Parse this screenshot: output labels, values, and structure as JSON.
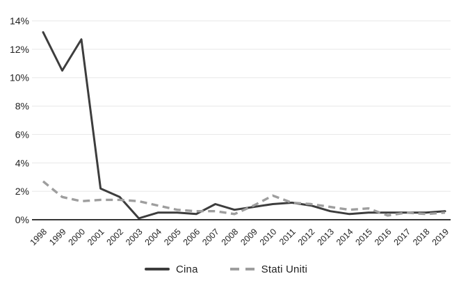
{
  "figure": {
    "background": "#ffffff"
  },
  "chart_data": {
    "type": "line",
    "title": "",
    "xlabel": "",
    "ylabel": "",
    "x": [
      "1998",
      "1999",
      "2000",
      "2001",
      "2002",
      "2003",
      "2004",
      "2005",
      "2006",
      "2007",
      "2008",
      "2009",
      "2010",
      "2011",
      "2012",
      "2013",
      "2014",
      "2015",
      "2016",
      "2017",
      "2018",
      "2019"
    ],
    "series": [
      {
        "name": "Cina",
        "line_style": "solid",
        "color": "#3d3d3d",
        "values": [
          13.2,
          10.5,
          12.7,
          2.2,
          1.6,
          0.1,
          0.5,
          0.5,
          0.4,
          1.1,
          0.7,
          0.9,
          1.1,
          1.2,
          1.0,
          0.6,
          0.4,
          0.5,
          0.5,
          0.5,
          0.5,
          0.6
        ]
      },
      {
        "name": "Stati Uniti",
        "line_style": "dashed",
        "color": "#9e9e9e",
        "values": [
          2.7,
          1.6,
          1.3,
          1.4,
          1.4,
          1.3,
          1.0,
          0.7,
          0.6,
          0.6,
          0.4,
          1.0,
          1.7,
          1.2,
          1.1,
          0.9,
          0.7,
          0.8,
          0.3,
          0.5,
          0.4,
          0.5
        ]
      }
    ],
    "ylim": [
      0,
      14
    ],
    "ytick_step": 2,
    "ytick_labels": [
      "0%",
      "2%",
      "4%",
      "6%",
      "8%",
      "10%",
      "12%",
      "14%"
    ],
    "grid": true,
    "grid_color": "#e7e7e7",
    "axis_color": "#1a1a1a",
    "text_color": "#1f1f1f",
    "legend_position": "bottom-center"
  }
}
